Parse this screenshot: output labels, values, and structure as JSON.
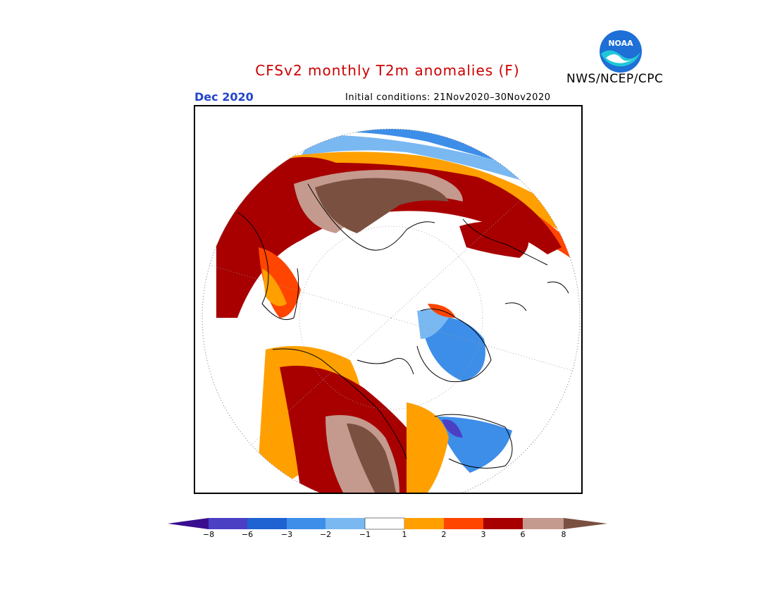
{
  "header": {
    "title": "CFSv2 monthly T2m anomalies (F)",
    "month": "Dec 2020",
    "initial_conditions": "Initial conditions: 21Nov2020–30Nov2020",
    "agency": "NWS/NCEP/CPC",
    "logo_text": "NOAA"
  },
  "colors": {
    "title": "#cc0000",
    "month": "#2244cc",
    "bins": [
      "#3a0f8f",
      "#4b3fc4",
      "#1f63d2",
      "#3d8ee8",
      "#7ab8f2",
      "#ffffff",
      "#ffa000",
      "#ff4500",
      "#a80000",
      "#c49a8e",
      "#7a5040"
    ]
  },
  "colorbar": {
    "labels": [
      "−8",
      "−6",
      "−3",
      "−2",
      "−1",
      "1",
      "2",
      "3",
      "6",
      "8"
    ]
  }
}
